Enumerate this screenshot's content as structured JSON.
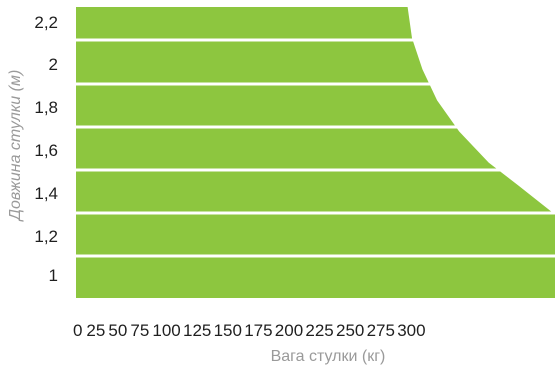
{
  "chart_data": {
    "type": "area",
    "title": "",
    "xlabel": "Вага стулки (кг)",
    "ylabel": "Довжина стулки (м)",
    "x_ticks": [
      "0",
      "25",
      "50",
      "75",
      "100",
      "125",
      "150",
      "175",
      "200",
      "225",
      "250",
      "275",
      "300"
    ],
    "y_ticks": [
      "2,2",
      "2",
      "1,8",
      "1,6",
      "1,4",
      "1,2",
      "1"
    ],
    "xlim": [
      0,
      325
    ],
    "ylim": [
      1,
      2.2
    ],
    "grid": false,
    "legend": "none",
    "fill_color": "#8dc63f",
    "band_separator_color": "#ffffff",
    "series": [
      {
        "x": [
          0,
          225,
          228,
          235,
          245,
          260,
          280,
          300,
          325
        ],
        "y": [
          2.2,
          2.2,
          2.05,
          1.9,
          1.75,
          1.6,
          1.45,
          1.34,
          1.2
        ]
      }
    ]
  }
}
